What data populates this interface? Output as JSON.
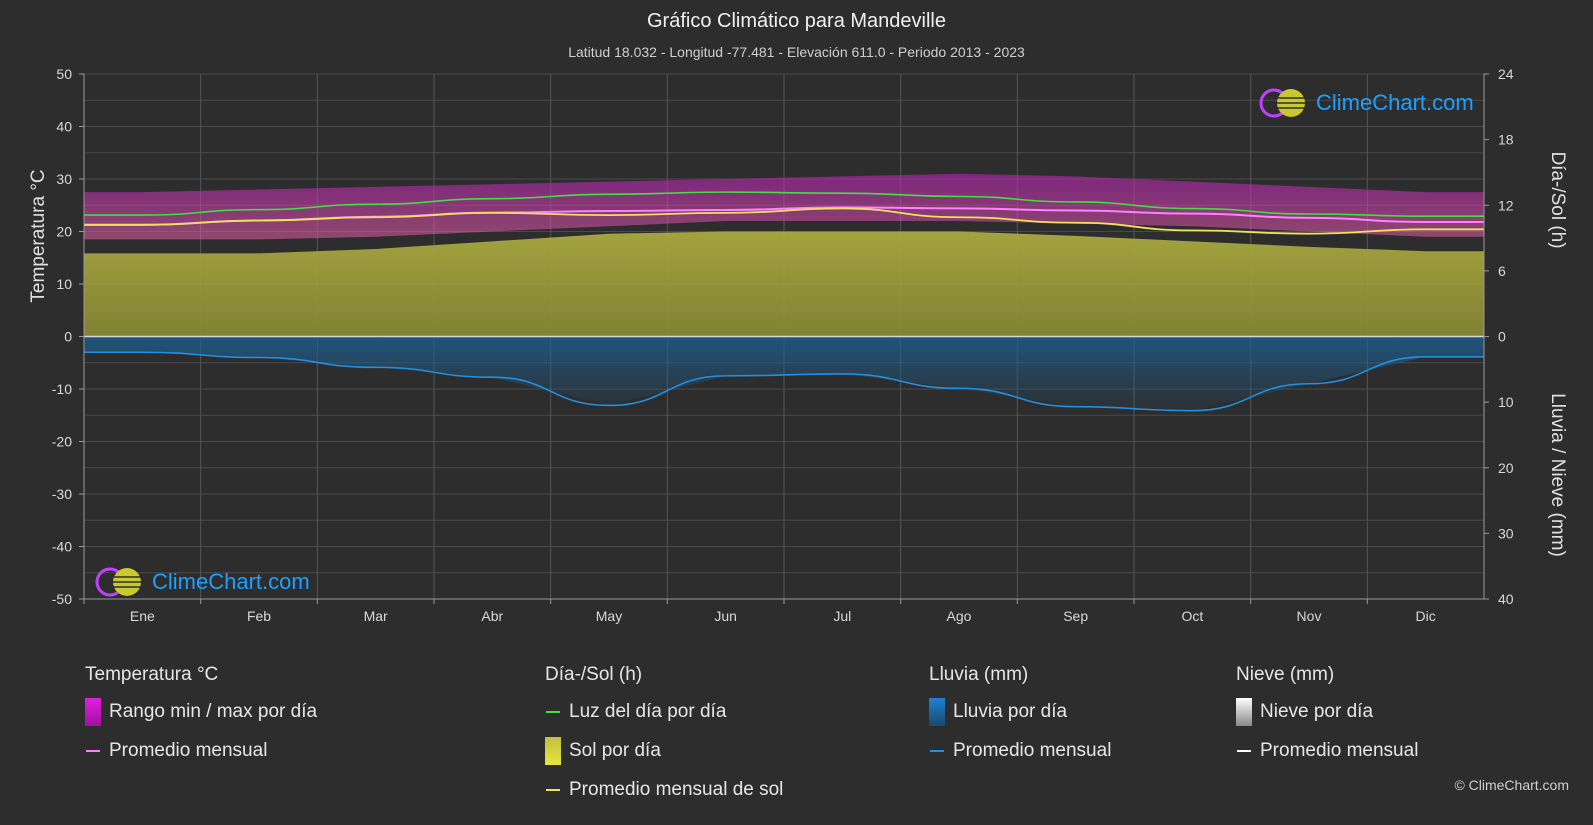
{
  "header": {
    "title": "Gráfico Climático para Mandeville",
    "subtitle": "Latitud 18.032 - Longitud -77.481 - Elevación 611.0 - Periodo 2013 - 2023"
  },
  "logo_text": "ClimeChart.com",
  "copyright": "© ClimeChart.com",
  "colors": {
    "background": "#2d2d2d",
    "temp_range": "#d020d0",
    "temp_avg": "#ff80ff",
    "daylight": "#40e040",
    "sunshine": "#a8a83a",
    "sunshine_avg": "#f0e060",
    "rain": "#1f6fa8",
    "rain_avg": "#2090e0",
    "snow_avg": "#ffffff",
    "logo": "#1ea0ff"
  },
  "legend": {
    "temperature": {
      "heading": "Temperatura °C",
      "items": [
        "Rango min / max por día",
        "Promedio mensual"
      ]
    },
    "sun": {
      "heading": "Día-/Sol (h)",
      "items": [
        "Luz del día por día",
        "Sol por día",
        "Promedio mensual de sol"
      ]
    },
    "rain": {
      "heading": "Lluvia (mm)",
      "items": [
        "Lluvia por día",
        "Promedio mensual"
      ]
    },
    "snow": {
      "heading": "Nieve (mm)",
      "items": [
        "Nieve por día",
        "Promedio mensual"
      ]
    }
  },
  "chart_data": {
    "type": "line",
    "categories": [
      "Ene",
      "Feb",
      "Mar",
      "Abr",
      "May",
      "Jun",
      "Jul",
      "Ago",
      "Sep",
      "Oct",
      "Nov",
      "Dic"
    ],
    "left_axis": {
      "label": "Temperatura °C",
      "ylim": [
        -50,
        50
      ],
      "ticks": [
        "50",
        "40",
        "30",
        "20",
        "10",
        "0",
        "-10",
        "-20",
        "-30",
        "-40",
        "-50"
      ]
    },
    "right_axis_top": {
      "label": "Día-/Sol (h)",
      "ylim": [
        0,
        24
      ],
      "ticks": [
        "24",
        "18",
        "12",
        "6",
        "0"
      ]
    },
    "right_axis_bottom": {
      "label": "Lluvia / Nieve (mm)",
      "ylim": [
        0,
        40
      ],
      "ticks": [
        "10",
        "20",
        "30",
        "40"
      ]
    },
    "grid": true,
    "series": [
      {
        "name": "Luz del día por día",
        "axis": "hours",
        "values": [
          11.1,
          11.6,
          12.1,
          12.6,
          13.0,
          13.2,
          13.1,
          12.8,
          12.3,
          11.7,
          11.2,
          11.0
        ]
      },
      {
        "name": "Promedio mensual de sol",
        "axis": "hours",
        "values": [
          10.2,
          10.6,
          10.9,
          11.3,
          11.1,
          11.3,
          11.7,
          10.9,
          10.4,
          9.7,
          9.4,
          9.8
        ]
      },
      {
        "name": "Sol por día",
        "axis": "hours",
        "values": [
          7.6,
          7.6,
          8.0,
          8.7,
          9.4,
          9.6,
          9.6,
          9.6,
          9.2,
          8.7,
          8.2,
          7.8
        ]
      },
      {
        "name": "Promedio mensual",
        "axis": "temp",
        "values": [
          21.3,
          22.1,
          22.8,
          23.6,
          23.9,
          24.1,
          24.6,
          24.4,
          24.0,
          23.4,
          22.6,
          21.8
        ]
      },
      {
        "name": "Rango min / max por día",
        "axis": "temp",
        "type": "band",
        "min": [
          18.5,
          18.5,
          19.0,
          20.0,
          21.0,
          22.0,
          22.0,
          22.0,
          21.5,
          21.0,
          20.0,
          19.0
        ],
        "max": [
          27.5,
          28.0,
          28.5,
          29.0,
          29.5,
          30.0,
          30.5,
          31.0,
          30.5,
          29.5,
          28.5,
          27.5
        ]
      },
      {
        "name": "Lluvia promedio mensual",
        "axis": "rain",
        "values": [
          2.4,
          3.2,
          4.7,
          6.2,
          10.5,
          6.0,
          5.7,
          7.9,
          10.7,
          11.3,
          7.2,
          3.1
        ]
      },
      {
        "name": "Nieve promedio mensual",
        "axis": "rain",
        "values": [
          0,
          0,
          0,
          0,
          0,
          0,
          0,
          0,
          0,
          0,
          0,
          0
        ]
      }
    ]
  }
}
